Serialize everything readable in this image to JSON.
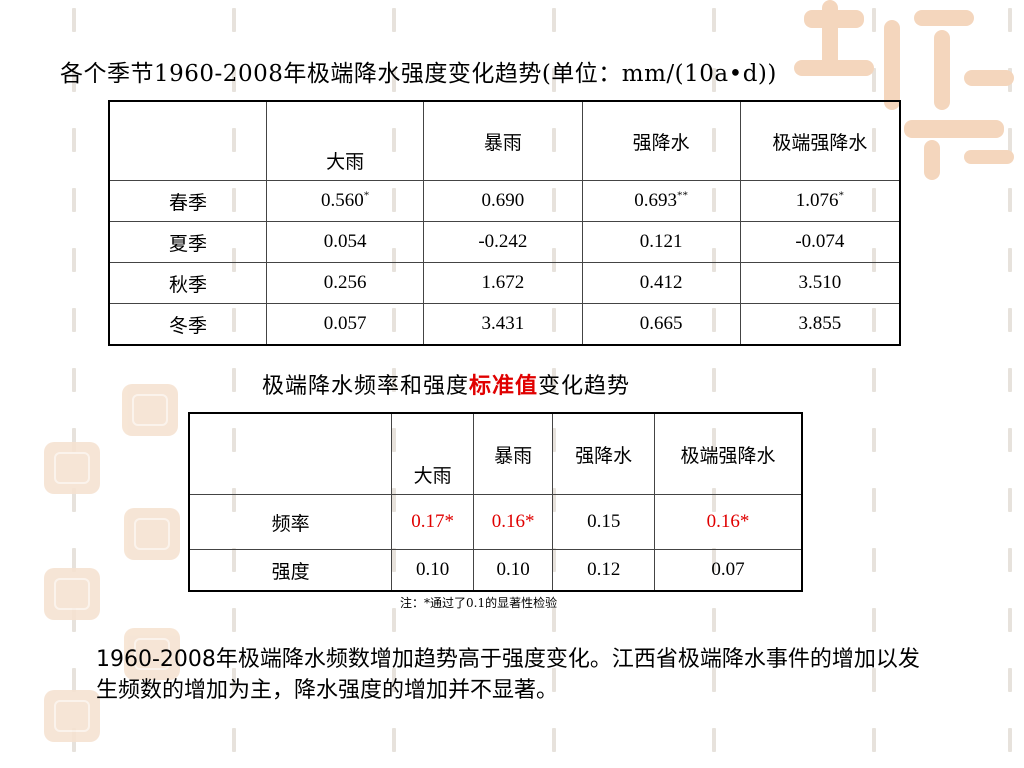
{
  "title1": "各个季节1960-2008年极端降水强度变化趋势(单位：mm/(10a•d))",
  "table1": {
    "headers": [
      "",
      "大雨",
      "暴雨",
      "强降水",
      "极端强降水"
    ],
    "rows": [
      {
        "season": "春季",
        "values": [
          {
            "v": "0.560",
            "sig": "*"
          },
          {
            "v": "0.690",
            "sig": ""
          },
          {
            "v": "0.693",
            "sig": "**"
          },
          {
            "v": "1.076",
            "sig": "*"
          }
        ]
      },
      {
        "season": "夏季",
        "values": [
          {
            "v": "0.054",
            "sig": ""
          },
          {
            "v": "-0.242",
            "sig": ""
          },
          {
            "v": "0.121",
            "sig": ""
          },
          {
            "v": "-0.074",
            "sig": ""
          }
        ]
      },
      {
        "season": "秋季",
        "values": [
          {
            "v": "0.256",
            "sig": ""
          },
          {
            "v": "1.672",
            "sig": ""
          },
          {
            "v": "0.412",
            "sig": ""
          },
          {
            "v": "3.510",
            "sig": ""
          }
        ]
      },
      {
        "season": "冬季",
        "values": [
          {
            "v": "0.057",
            "sig": ""
          },
          {
            "v": "3.431",
            "sig": ""
          },
          {
            "v": "0.665",
            "sig": ""
          },
          {
            "v": "3.855",
            "sig": ""
          }
        ]
      }
    ]
  },
  "title2": {
    "prefix": "极端降水频率和强度",
    "highlight": "标准值",
    "suffix": "变化趋势"
  },
  "table2": {
    "headers": [
      "",
      "大雨",
      "暴雨",
      "强降水",
      "极端强降水"
    ],
    "rows": [
      {
        "label": "频率",
        "values": [
          "0.17*",
          "0.16*",
          "0.15",
          "0.16*"
        ],
        "significant": [
          true,
          true,
          false,
          true
        ]
      },
      {
        "label": "强度",
        "values": [
          "0.10",
          "0.10",
          "0.12",
          "0.07"
        ],
        "significant": [
          false,
          false,
          false,
          false
        ]
      }
    ]
  },
  "note": "注：*通过了0.1的显著性检验",
  "paragraph": "1960-2008年极端降水频数增加趋势高于强度变化。江西省极端降水事件的增加以发生频数的增加为主，降水强度的增加并不显著。",
  "colors": {
    "highlight": "#e00000",
    "seal": "#f6e3d2",
    "dash": "#e7e2dc"
  }
}
